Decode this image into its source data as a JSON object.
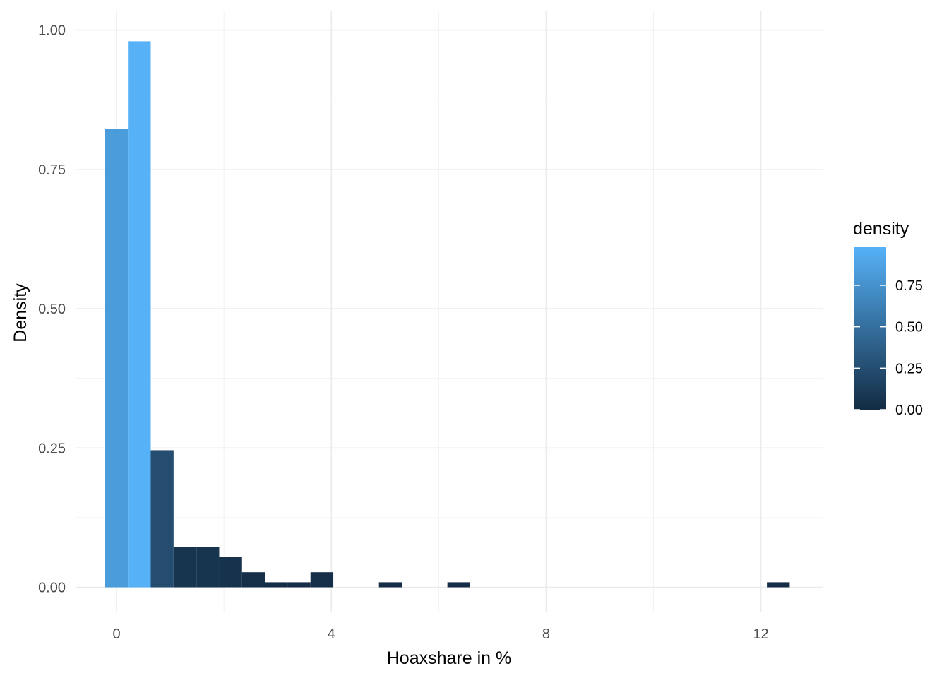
{
  "chart_data": {
    "type": "bar",
    "subtype": "histogram",
    "xlabel": "Hoaxshare in %",
    "ylabel": "Density",
    "xlim": [
      -0.75,
      13.15
    ],
    "ylim": [
      -0.045,
      1.035
    ],
    "x_ticks": [
      0,
      4,
      8,
      12
    ],
    "x_tick_labels": [
      "0",
      "4",
      "8",
      "12"
    ],
    "y_ticks": [
      0,
      0.25,
      0.5,
      0.75,
      1.0
    ],
    "y_tick_labels": [
      "0.00",
      "0.25",
      "0.50",
      "0.75",
      "1.00"
    ],
    "grid": true,
    "bin_width": 0.425,
    "bins": [
      {
        "x0": -0.2125,
        "x1": 0.2125,
        "value": 0.823
      },
      {
        "x0": 0.2125,
        "x1": 0.6375,
        "value": 0.98
      },
      {
        "x0": 0.6375,
        "x1": 1.0625,
        "value": 0.246
      },
      {
        "x0": 1.0625,
        "x1": 1.4875,
        "value": 0.072
      },
      {
        "x0": 1.4875,
        "x1": 1.9125,
        "value": 0.072
      },
      {
        "x0": 1.9125,
        "x1": 2.3375,
        "value": 0.054
      },
      {
        "x0": 2.3375,
        "x1": 2.7625,
        "value": 0.027
      },
      {
        "x0": 2.7625,
        "x1": 3.1875,
        "value": 0.009
      },
      {
        "x0": 3.1875,
        "x1": 3.6125,
        "value": 0.009
      },
      {
        "x0": 3.6125,
        "x1": 4.0375,
        "value": 0.027
      },
      {
        "x0": 4.8875,
        "x1": 5.3125,
        "value": 0.009
      },
      {
        "x0": 6.1625,
        "x1": 6.5875,
        "value": 0.009
      },
      {
        "x0": 12.1125,
        "x1": 12.5375,
        "value": 0.009
      }
    ],
    "legend": {
      "title": "density",
      "position": "right",
      "type": "colorbar",
      "range": [
        0.0,
        0.98
      ],
      "breaks": [
        0.0,
        0.25,
        0.5,
        0.75
      ],
      "break_labels": [
        "0.00",
        "0.25",
        "0.50",
        "0.75"
      ],
      "low_color": "#132B43",
      "high_color": "#56B1F7"
    }
  }
}
